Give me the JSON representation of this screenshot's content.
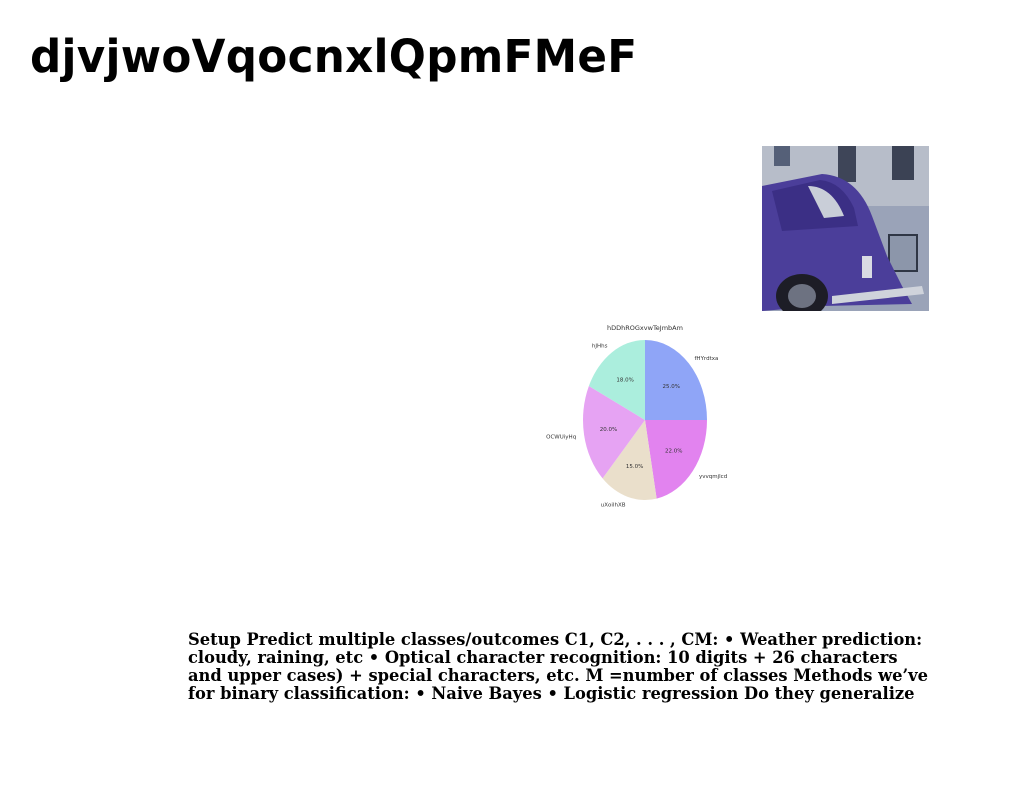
{
  "slide": {
    "title": "djvjwoVqocnxlQpmFMeF",
    "body": "Setup Predict multiple classes/outcomes C1, C2, . . . , CM: • Weather prediction: cloudy, raining, etc • Optical character recognition: 10 digits + 26 characters and upper cases) + special characters, etc. M =number of classes Methods we’ve for binary classification: • Naive Bayes • Logistic regression Do they generalize",
    "photo_icon": "vintage-car-photo"
  },
  "chart_data": {
    "type": "pie",
    "title": "hDDhROGxvwTeJmbAm",
    "labels": [
      "fHYrdtxa",
      "yvvqmjlcd",
      "uXoilhXB",
      "OCWUiyHq",
      "hJHhs"
    ],
    "values": [
      25.0,
      22.0,
      15.0,
      20.0,
      18.0
    ],
    "value_labels": [
      "25.0%",
      "22.0%",
      "15.0%",
      "20.0%",
      "18.0%"
    ],
    "colors": [
      "#8fa5f7",
      "#e283ef",
      "#eadfcb",
      "#e6a3f3",
      "#abeedd"
    ],
    "start_angle": 90,
    "direction": "clockwise"
  }
}
